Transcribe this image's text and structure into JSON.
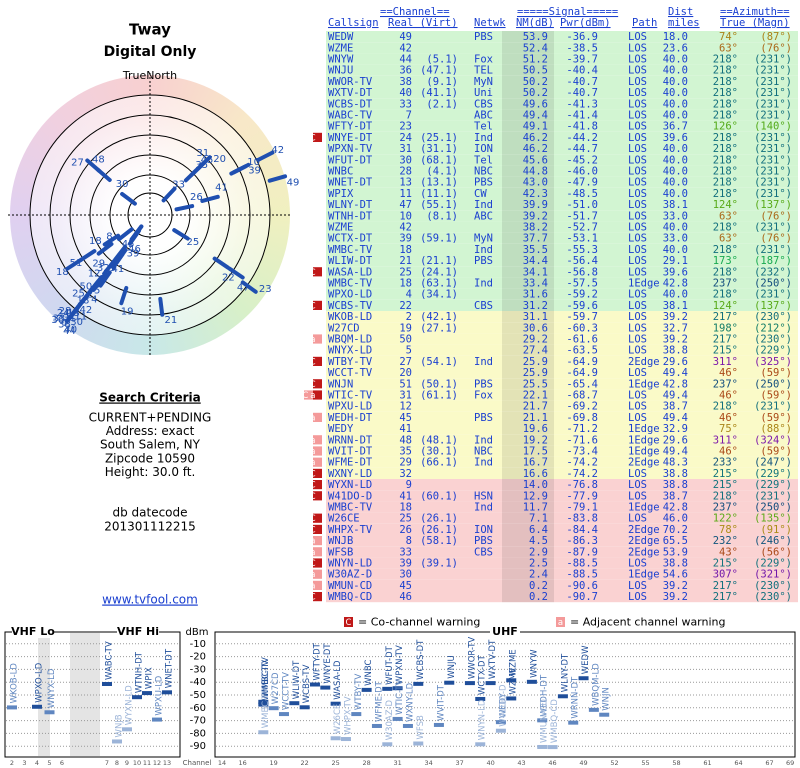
{
  "header": {
    "title": "Tway",
    "subtitle": "Digital Only",
    "north": "TrueNorth"
  },
  "criteria": {
    "title": "Search Criteria",
    "lines": [
      "CURRENT+PENDING",
      "Address: exact",
      "South Salem, NY",
      "Zipcode 10590",
      "Height: 30.0 ft."
    ],
    "db_label": "db datecode",
    "db_code": "201301112215",
    "link": "www.tvfool.com"
  },
  "table": {
    "groups": [
      "==Channel==",
      "=====Signal=====",
      "Dist",
      "==Azimuth=="
    ],
    "columns": [
      "Callsign",
      "Real (Virt)",
      "Netwk",
      "NM(dB)",
      "Pwr(dBm)",
      "Path",
      "miles",
      "True (Magn)"
    ],
    "rows": [
      [
        "WEDW",
        "49",
        null,
        "PBS",
        "53.9",
        "-36.9",
        "LOS",
        "18.0",
        "74°",
        "(87°)",
        null
      ],
      [
        "WZME",
        "42",
        null,
        null,
        "52.4",
        "-38.5",
        "LOS",
        "23.6",
        "63°",
        "(76°)",
        null
      ],
      [
        "WNYW",
        "44",
        "(5.1)",
        "Fox",
        "51.2",
        "-39.7",
        "LOS",
        "40.0",
        "218°",
        "(231°)",
        null
      ],
      [
        "WNJU",
        "36",
        "(47.1)",
        "TEL",
        "50.5",
        "-40.4",
        "LOS",
        "40.0",
        "218°",
        "(231°)",
        null
      ],
      [
        "WWOR-TV",
        "38",
        "(9.1)",
        "MyN",
        "50.2",
        "-40.7",
        "LOS",
        "40.0",
        "218°",
        "(231°)",
        null
      ],
      [
        "WXTV-DT",
        "40",
        "(41.1)",
        "Uni",
        "50.2",
        "-40.7",
        "LOS",
        "40.0",
        "218°",
        "(231°)",
        null
      ],
      [
        "WCBS-DT",
        "33",
        "(2.1)",
        "CBS",
        "49.6",
        "-41.3",
        "LOS",
        "40.0",
        "218°",
        "(231°)",
        null
      ],
      [
        "WABC-TV",
        "7",
        null,
        "ABC",
        "49.4",
        "-41.4",
        "LOS",
        "40.0",
        "218°",
        "(231°)",
        null
      ],
      [
        "WFTY-DT",
        "23",
        null,
        "Tel",
        "49.1",
        "-41.8",
        "LOS",
        "36.7",
        "126°",
        "(140°)",
        null
      ],
      [
        "WNYE-DT",
        "24",
        "(25.1)",
        "Ind",
        "46.2",
        "-44.2",
        "LOS",
        "39.6",
        "218°",
        "(231°)",
        "C"
      ],
      [
        "WPXN-TV",
        "31",
        "(31.1)",
        "ION",
        "46.2",
        "-44.7",
        "LOS",
        "40.0",
        "218°",
        "(231°)",
        null
      ],
      [
        "WFUT-DT",
        "30",
        "(68.1)",
        "Tel",
        "45.6",
        "-45.2",
        "LOS",
        "40.0",
        "218°",
        "(231°)",
        null
      ],
      [
        "WNBC",
        "28",
        "(4.1)",
        "NBC",
        "44.8",
        "-46.0",
        "LOS",
        "40.0",
        "218°",
        "(231°)",
        null
      ],
      [
        "WNET-DT",
        "13",
        "(13.1)",
        "PBS",
        "43.0",
        "-47.9",
        "LOS",
        "40.0",
        "218°",
        "(231°)",
        null
      ],
      [
        "WPIX",
        "11",
        "(11.1)",
        "CW",
        "42.3",
        "-48.5",
        "LOS",
        "40.0",
        "218°",
        "(231°)",
        null
      ],
      [
        "WLNY-DT",
        "47",
        "(55.1)",
        "Ind",
        "39.9",
        "-51.0",
        "LOS",
        "38.1",
        "124°",
        "(137°)",
        null
      ],
      [
        "WTNH-DT",
        "10",
        "(8.1)",
        "ABC",
        "39.2",
        "-51.7",
        "LOS",
        "33.0",
        "63°",
        "(76°)",
        null
      ],
      [
        "WZME",
        "42",
        null,
        null,
        "38.2",
        "-52.7",
        "LOS",
        "40.0",
        "218°",
        "(231°)",
        null
      ],
      [
        "WCTX-DT",
        "39",
        "(59.1)",
        "MyN",
        "37.7",
        "-53.1",
        "LOS",
        "33.0",
        "63°",
        "(76°)",
        null
      ],
      [
        "WMBC-TV",
        "18",
        null,
        "Ind",
        "35.5",
        "-55.3",
        "LOS",
        "40.0",
        "218°",
        "(231°)",
        null
      ],
      [
        "WLIW-DT",
        "21",
        "(21.1)",
        "PBS",
        "34.4",
        "-56.4",
        "LOS",
        "29.1",
        "173°",
        "(187°)",
        null
      ],
      [
        "WASA-LD",
        "25",
        "(24.1)",
        null,
        "34.1",
        "-56.8",
        "LOS",
        "39.6",
        "218°",
        "(232°)",
        "C"
      ],
      [
        "WMBC-TV",
        "18",
        "(63.1)",
        "Ind",
        "33.4",
        "-57.5",
        "1Edge",
        "42.8",
        "237°",
        "(250°)",
        null
      ],
      [
        "WPXO-LD",
        "4",
        "(34.1)",
        null,
        "31.6",
        "-59.2",
        "LOS",
        "40.0",
        "218°",
        "(231°)",
        null
      ],
      [
        "WCBS-TV",
        "22",
        null,
        "CBS",
        "31.2",
        "-59.6",
        "LOS",
        "38.1",
        "124°",
        "(137°)",
        "C"
      ],
      [
        "WKOB-LD",
        "2",
        "(42.1)",
        null,
        "31.1",
        "-59.7",
        "LOS",
        "39.2",
        "217°",
        "(230°)",
        null
      ],
      [
        "W27CD",
        "19",
        "(27.1)",
        null,
        "30.6",
        "-60.3",
        "LOS",
        "32.7",
        "198°",
        "(212°)",
        null
      ],
      [
        "WBQM-LD",
        "50",
        null,
        null,
        "29.2",
        "-61.6",
        "LOS",
        "39.2",
        "217°",
        "(230°)",
        "a"
      ],
      [
        "WNYX-LD",
        "5",
        null,
        null,
        "27.4",
        "-63.5",
        "LOS",
        "38.8",
        "215°",
        "(229°)",
        null
      ],
      [
        "WTBY-TV",
        "27",
        "(54.1)",
        "Ind",
        "25.9",
        "-64.9",
        "2Edge",
        "29.6",
        "311°",
        "(325°)",
        "C"
      ],
      [
        "WCCT-TV",
        "20",
        null,
        null,
        "25.9",
        "-64.9",
        "LOS",
        "49.4",
        "46°",
        "(59°)",
        null
      ],
      [
        "WNJN",
        "51",
        "(50.1)",
        "PBS",
        "25.5",
        "-65.4",
        "1Edge",
        "42.8",
        "237°",
        "(250°)",
        "C"
      ],
      [
        "WTIC-TV",
        "31",
        "(61.1)",
        "Fox",
        "22.1",
        "-68.7",
        "LOS",
        "49.4",
        "46°",
        "(59°)",
        "Ca"
      ],
      [
        "WPXU-LD",
        "12",
        null,
        null,
        "21.7",
        "-69.2",
        "LOS",
        "38.7",
        "218°",
        "(231°)",
        null
      ],
      [
        "WEDH-DT",
        "45",
        null,
        "PBS",
        "21.1",
        "-69.8",
        "LOS",
        "49.4",
        "46°",
        "(59°)",
        "a"
      ],
      [
        "WEDY",
        "41",
        null,
        null,
        "19.6",
        "-71.2",
        "1Edge",
        "32.9",
        "75°",
        "(88°)",
        null
      ],
      [
        "WRNN-DT",
        "48",
        "(48.1)",
        "Ind",
        "19.2",
        "-71.6",
        "1Edge",
        "29.6",
        "311°",
        "(324°)",
        "a"
      ],
      [
        "WVIT-DT",
        "35",
        "(30.1)",
        "NBC",
        "17.5",
        "-73.4",
        "1Edge",
        "49.4",
        "46°",
        "(59°)",
        "a"
      ],
      [
        "WFME-DT",
        "29",
        "(66.1)",
        "Ind",
        "16.7",
        "-74.2",
        "2Edge",
        "48.3",
        "233°",
        "(247°)",
        "a"
      ],
      [
        "WXNY-LD",
        "32",
        null,
        null,
        "16.6",
        "-74.2",
        "LOS",
        "38.8",
        "215°",
        "(229°)",
        "C"
      ],
      [
        "WYXN-LD",
        "9",
        null,
        null,
        "14.0",
        "-76.8",
        "LOS",
        "38.8",
        "215°",
        "(229°)",
        "C"
      ],
      [
        "W41DO-D",
        "41",
        "(60.1)",
        "HSN",
        "12.9",
        "-77.9",
        "LOS",
        "38.7",
        "218°",
        "(231°)",
        "C"
      ],
      [
        "WMBC-TV",
        "18",
        null,
        "Ind",
        "11.7",
        "-79.1",
        "1Edge",
        "42.8",
        "237°",
        "(250°)",
        null
      ],
      [
        "W26CE",
        "25",
        "(26.1)",
        null,
        "7.1",
        "-83.8",
        "LOS",
        "46.0",
        "122°",
        "(135°)",
        "C"
      ],
      [
        "WHPX-TV",
        "26",
        "(26.1)",
        "ION",
        "6.4",
        "-84.4",
        "2Edge",
        "70.2",
        "78°",
        "(91°)",
        "C"
      ],
      [
        "WNJB",
        "8",
        "(58.1)",
        "PBS",
        "4.5",
        "-86.3",
        "2Edge",
        "65.5",
        "232°",
        "(246°)",
        "a"
      ],
      [
        "WFSB",
        "33",
        null,
        "CBS",
        "2.9",
        "-87.9",
        "2Edge",
        "53.9",
        "43°",
        "(56°)",
        "a"
      ],
      [
        "WNYN-LD",
        "39",
        "(39.1)",
        null,
        "2.5",
        "-88.5",
        "LOS",
        "38.8",
        "215°",
        "(229°)",
        "C"
      ],
      [
        "W30AZ-D",
        "30",
        null,
        null,
        "2.4",
        "-88.5",
        "1Edge",
        "54.6",
        "307°",
        "(321°)",
        "a"
      ],
      [
        "WMUN-CD",
        "45",
        null,
        null,
        "0.2",
        "-90.6",
        "LOS",
        "39.2",
        "217°",
        "(230°)",
        "a"
      ],
      [
        "WMBQ-CD",
        "46",
        null,
        null,
        "0.2",
        "-90.7",
        "LOS",
        "39.2",
        "217°",
        "(230°)",
        "C"
      ]
    ]
  },
  "legend": {
    "co": "C",
    "co_text": "= Co-channel warning",
    "adj": "a",
    "adj_text": "= Adjacent channel warning"
  },
  "spectrum": {
    "vhf_lo": "VHF Lo",
    "vhf_hi": "VHF Hi",
    "uhf": "UHF",
    "unit": "dBm",
    "channel": "Channel",
    "ylim": [
      0,
      -100
    ],
    "yticks": [
      -10,
      -20,
      -30,
      -40,
      -50,
      -60,
      -70,
      -80,
      -90
    ],
    "lo_ticks": [
      2,
      3,
      4,
      5,
      6
    ],
    "hi_ticks": [
      7,
      8,
      9,
      10,
      11,
      12,
      13
    ],
    "uhf_ticks": [
      14,
      16,
      19,
      22,
      25,
      28,
      31,
      34,
      37,
      40,
      43,
      46,
      49,
      52,
      55,
      58,
      61,
      64,
      67,
      69
    ]
  }
}
